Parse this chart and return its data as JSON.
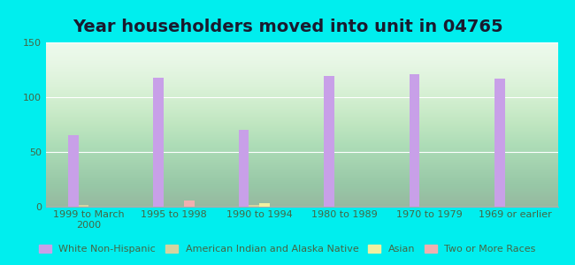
{
  "title": "Year householders moved into unit in 04765",
  "categories": [
    "1999 to March\n2000",
    "1995 to 1998",
    "1990 to 1994",
    "1980 to 1989",
    "1970 to 1979",
    "1969 or earlier"
  ],
  "series": {
    "White Non-Hispanic": [
      65,
      118,
      70,
      119,
      121,
      117
    ],
    "American Indian and Alaska Native": [
      2,
      0,
      2,
      0,
      0,
      0
    ],
    "Asian": [
      0,
      0,
      3,
      0,
      0,
      0
    ],
    "Two or More Races": [
      0,
      6,
      0,
      0,
      0,
      0
    ]
  },
  "colors": {
    "White Non-Hispanic": "#c8a0e8",
    "American Indian and Alaska Native": "#d4d4a0",
    "Asian": "#f0f0a0",
    "Two or More Races": "#f0b0b0"
  },
  "ylim": [
    0,
    150
  ],
  "yticks": [
    0,
    50,
    100,
    150
  ],
  "background_color": "#00eeee",
  "bar_width": 0.12,
  "title_fontsize": 14,
  "tick_fontsize": 8,
  "legend_fontsize": 8
}
